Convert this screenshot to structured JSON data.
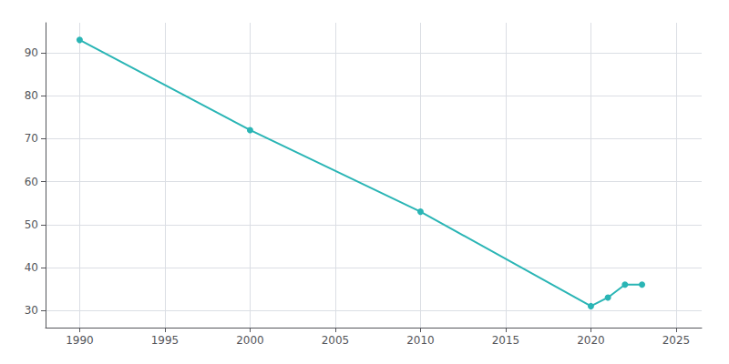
{
  "chart_data": {
    "type": "line",
    "x": [
      1990,
      2000,
      2010,
      2020,
      2021,
      2022,
      2023
    ],
    "values": [
      93,
      72,
      53,
      31,
      33,
      36,
      36
    ],
    "color": "#2ab5b5",
    "marker": "circle",
    "xlim": [
      1988,
      2026.5
    ],
    "ylim": [
      26,
      97
    ],
    "xticks": [
      1990,
      1995,
      2000,
      2005,
      2010,
      2015,
      2020,
      2025
    ],
    "yticks": [
      30,
      40,
      50,
      60,
      70,
      80,
      90
    ],
    "grid": true
  }
}
